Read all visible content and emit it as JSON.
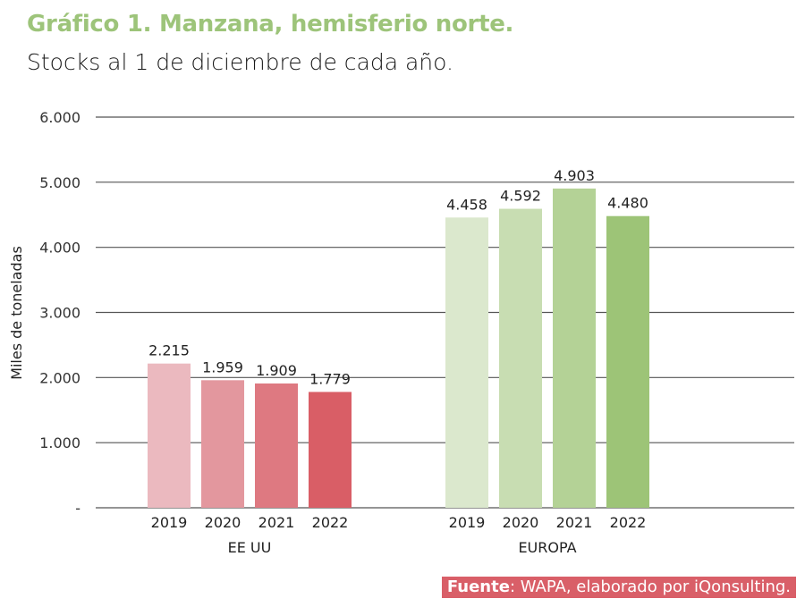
{
  "chart_data": {
    "type": "bar",
    "title": "Gráfico 1. Manzana, hemisferio norte.",
    "subtitle": "Stocks al 1 de  diciembre de cada año.",
    "ylabel": "Miles de toneladas",
    "xlabel": "",
    "ylim": [
      0,
      6000
    ],
    "yticks": [
      {
        "value": 0,
        "label": "-"
      },
      {
        "value": 1000,
        "label": "1.000"
      },
      {
        "value": 2000,
        "label": "2.000"
      },
      {
        "value": 3000,
        "label": "3.000"
      },
      {
        "value": 4000,
        "label": "4.000"
      },
      {
        "value": 5000,
        "label": "5.000"
      },
      {
        "value": 6000,
        "label": "6.000"
      }
    ],
    "grid": true,
    "legend": "none",
    "groups": [
      {
        "name": "EE UU",
        "categories": [
          "2019",
          "2020",
          "2021",
          "2022"
        ],
        "values": [
          2215,
          1959,
          1909,
          1779
        ],
        "labels": [
          "2.215",
          "1.959",
          "1.909",
          "1.779"
        ],
        "colors": [
          "#ebb9bf",
          "#e3979e",
          "#de7981",
          "#d95e66"
        ]
      },
      {
        "name": "EUROPA",
        "categories": [
          "2019",
          "2020",
          "2021",
          "2022"
        ],
        "values": [
          4458,
          4592,
          4903,
          4480
        ],
        "labels": [
          "4.458",
          "4.592",
          "4.903",
          "4.480"
        ],
        "colors": [
          "#dbe8cd",
          "#c8ddb2",
          "#b4d296",
          "#9dc477"
        ]
      }
    ]
  },
  "source": {
    "bold": "Fuente",
    "rest": ": WAPA, elaborado por iQonsulting."
  },
  "colors": {
    "title": "#9dc47a",
    "source_bg": "#d95f68",
    "grid": "#555555"
  }
}
